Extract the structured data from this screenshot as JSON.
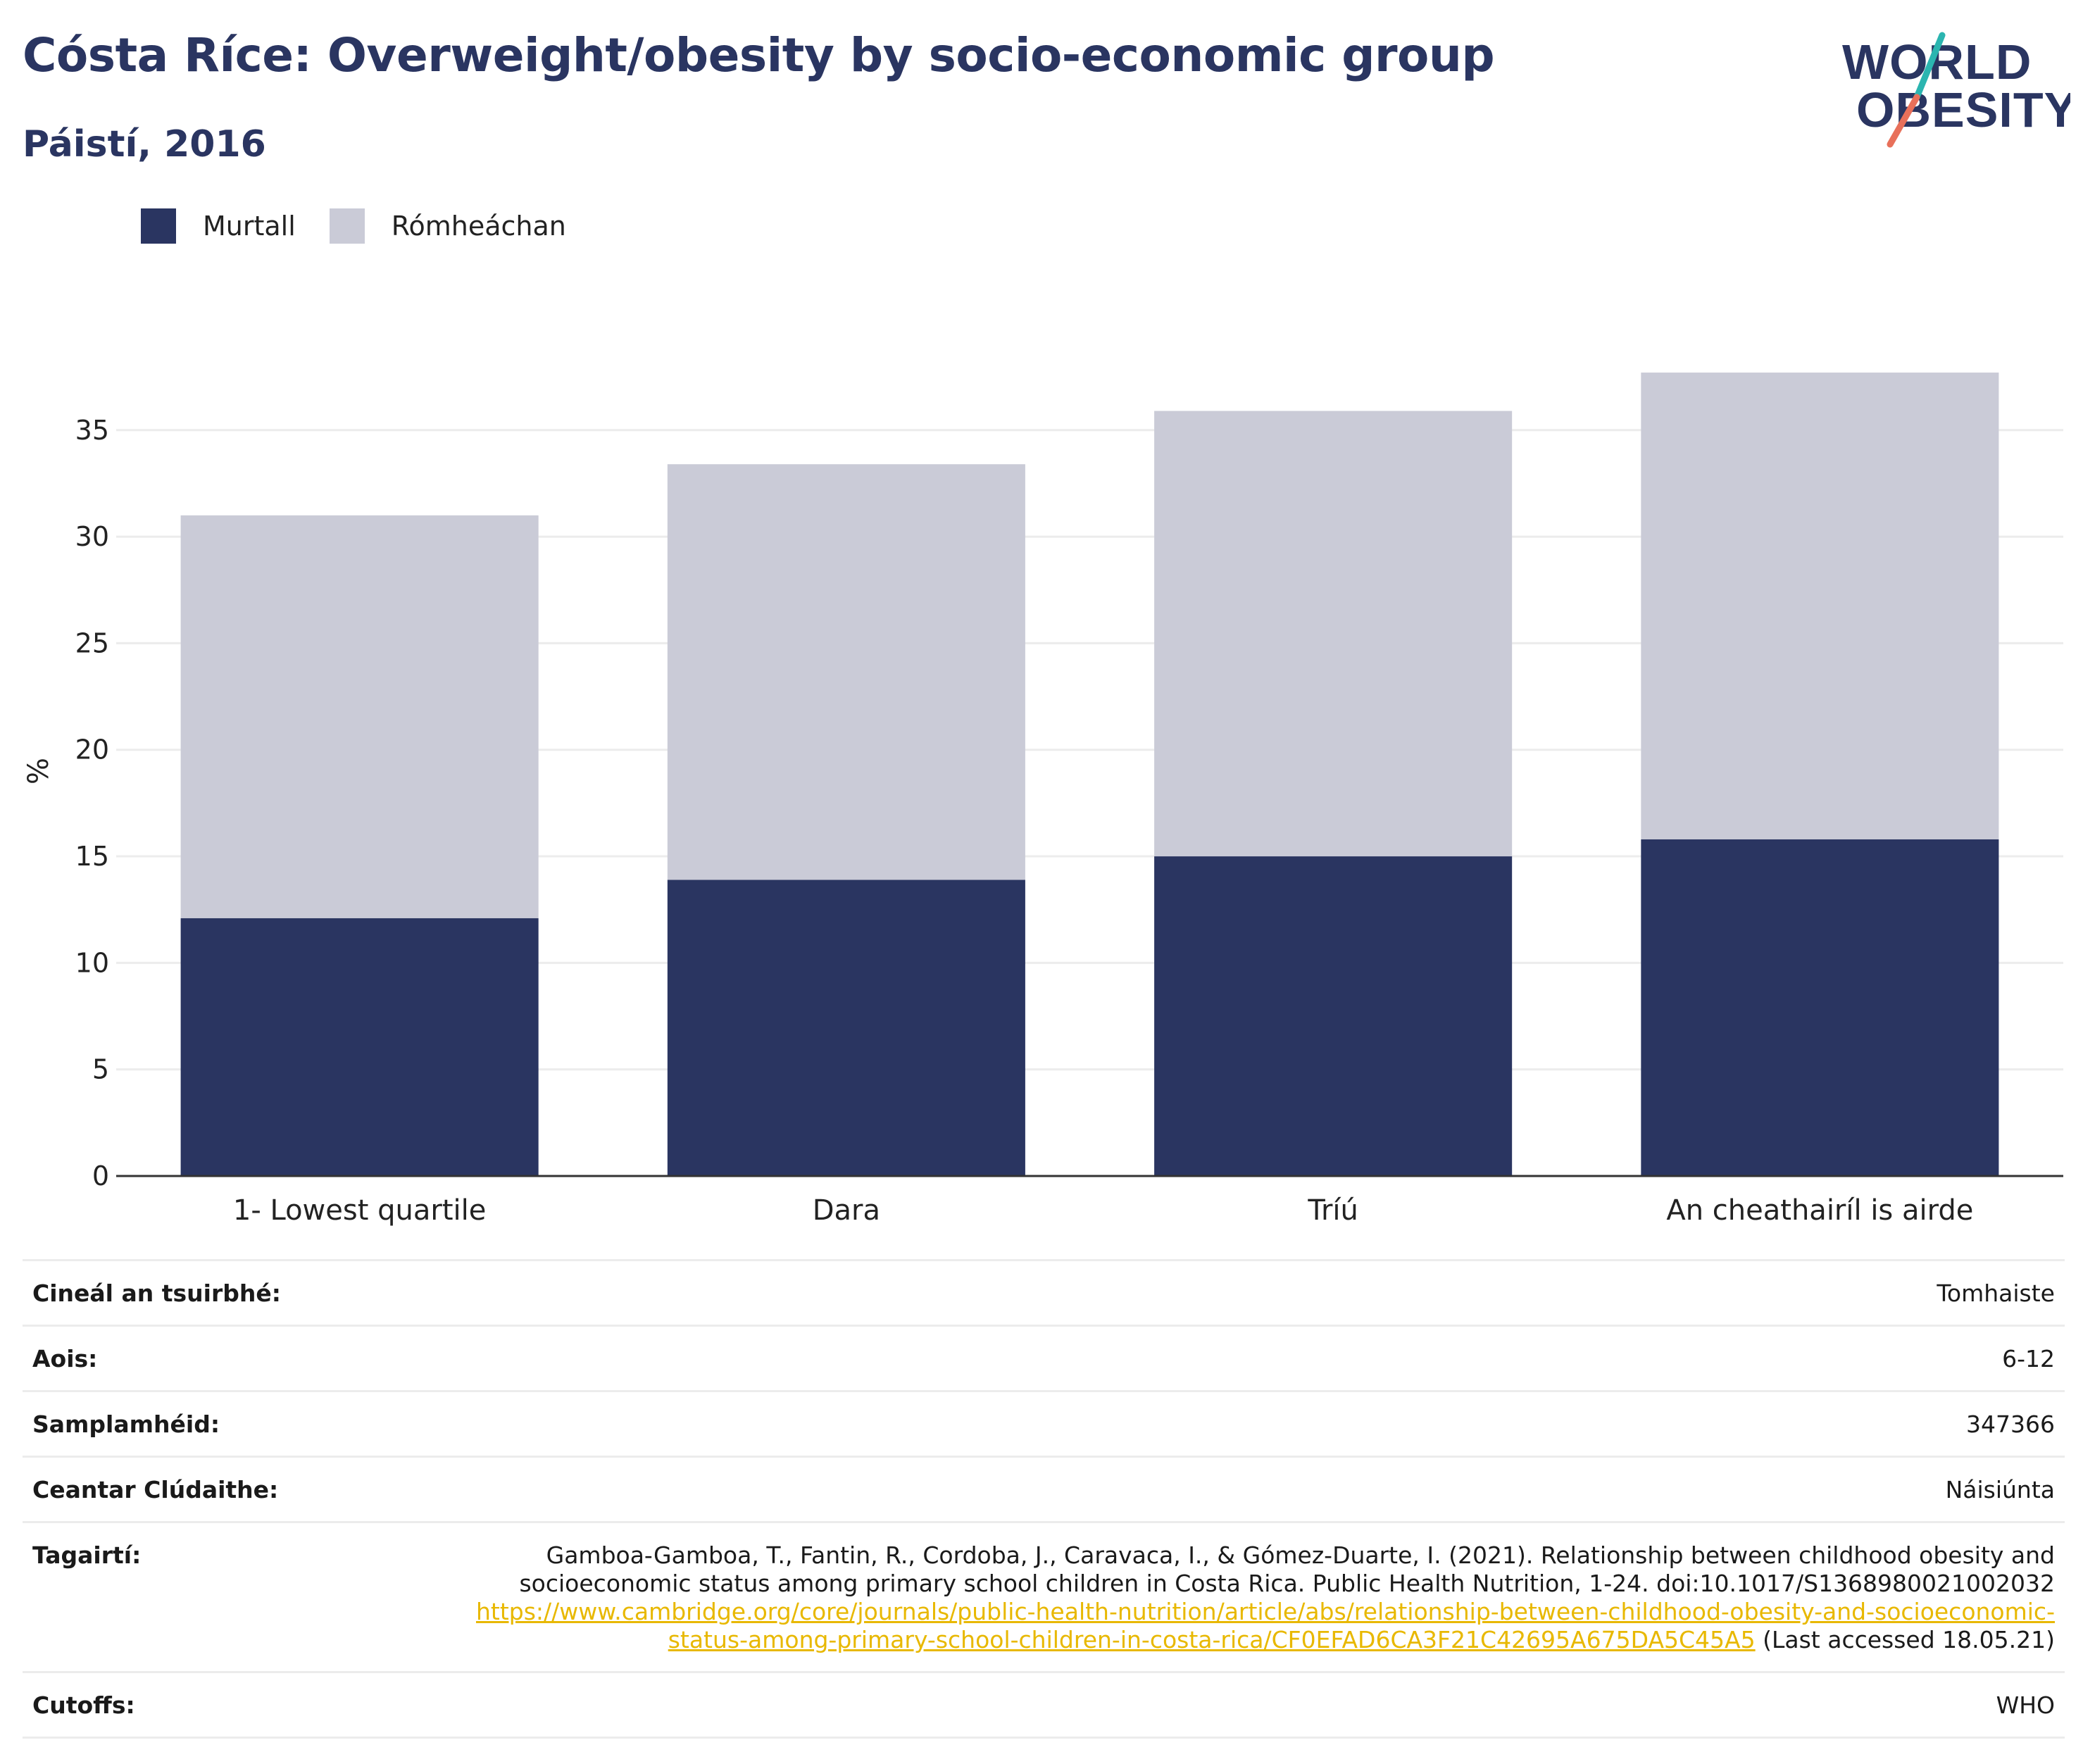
{
  "header": {
    "title": "Cósta Ríce: Overweight/obesity by socio-economic group",
    "subtitle": "Páistí, 2016"
  },
  "logo": {
    "line1": "WORLD",
    "line2": "OBESITY",
    "colors": {
      "text": "#2a3561",
      "accent_teal": "#2bb5b0",
      "accent_coral": "#e8705a"
    }
  },
  "chart_data": {
    "type": "bar",
    "stacked": true,
    "categories": [
      "1- Lowest quartile",
      "Dara",
      "Tríú",
      "An cheathairíl is airde"
    ],
    "series": [
      {
        "name": "Murtall",
        "color": "#2a3561",
        "values": [
          12.1,
          13.9,
          15.0,
          15.8
        ]
      },
      {
        "name": "Rómheáchan",
        "color": "#cacbd7",
        "values": [
          18.9,
          19.5,
          20.9,
          21.9
        ]
      }
    ],
    "ylabel": "%",
    "ylim": [
      0,
      38
    ],
    "yticks": [
      0,
      5,
      10,
      15,
      20,
      25,
      30,
      35
    ],
    "grid": true,
    "legend": "top-left"
  },
  "info": {
    "rows": [
      {
        "label": "Cineál an tsuirbhé:",
        "value": "Tomhaiste"
      },
      {
        "label": "Aois:",
        "value": "6-12"
      },
      {
        "label": "Samplamhéid:",
        "value": "347366"
      },
      {
        "label": "Ceantar Clúdaithe:",
        "value": "Náisiúnta"
      }
    ],
    "reference": {
      "label": "Tagairtí:",
      "text": "Gamboa-Gamboa, T., Fantin, R., Cordoba, J., Caravaca, I., & Gómez-Duarte, I. (2021). Relationship between childhood obesity and socioeconomic status among primary school children in Costa Rica. Public Health Nutrition, 1-24. doi:10.1017/S1368980021002032",
      "link": "https://www.cambridge.org/core/journals/public-health-nutrition/article/abs/relationship-between-childhood-obesity-and-socioeconomic-status-among-primary-school-children-in-costa-rica/CF0EFAD6CA3F21C42695A675DA5C45A5",
      "suffix": "(Last accessed 18.05.21)"
    },
    "cutoffs": {
      "label": "Cutoffs:",
      "value": "WHO"
    }
  }
}
